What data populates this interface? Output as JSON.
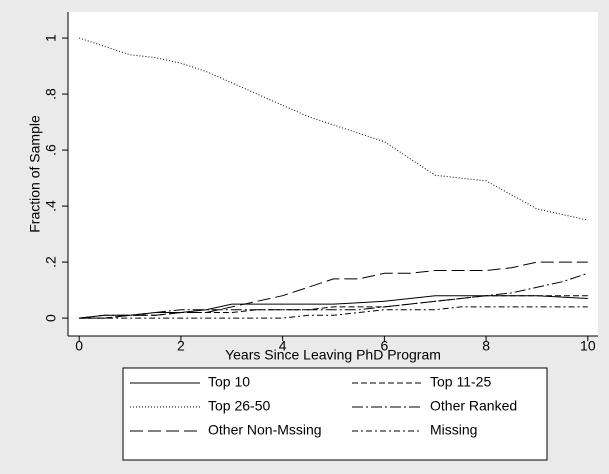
{
  "chart_data": {
    "type": "line",
    "xlabel": "Years Since Leaving PhD Program",
    "ylabel": "Fraction of Sample",
    "x": [
      0,
      0.5,
      1,
      1.5,
      2,
      2.5,
      3,
      3.5,
      4,
      4.5,
      5,
      5.5,
      6,
      6.5,
      7,
      7.5,
      8,
      8.5,
      9,
      9.5,
      10
    ],
    "series": [
      {
        "name": "Top 10",
        "color": "#000000",
        "dash": "solid",
        "values": [
          0,
          0.01,
          0.01,
          0.02,
          0.02,
          0.03,
          0.05,
          0.05,
          0.05,
          0.05,
          0.05,
          0.055,
          0.06,
          0.07,
          0.08,
          0.08,
          0.08,
          0.08,
          0.08,
          0.075,
          0.07
        ]
      },
      {
        "name": "Top 11-25",
        "color": "#000000",
        "dash": "dash",
        "values": [
          0,
          0,
          0.01,
          0.01,
          0.02,
          0.02,
          0.02,
          0.03,
          0.03,
          0.03,
          0.04,
          0.04,
          0.04,
          0.05,
          0.06,
          0.07,
          0.08,
          0.08,
          0.08,
          0.08,
          0.08
        ]
      },
      {
        "name": "Top 26-50",
        "color": "#000000",
        "dash": "dot",
        "values": [
          1,
          0.97,
          0.94,
          0.93,
          0.91,
          0.88,
          0.84,
          0.8,
          0.76,
          0.72,
          0.69,
          0.66,
          0.63,
          0.57,
          0.51,
          0.5,
          0.49,
          0.44,
          0.39,
          0.37,
          0.35
        ]
      },
      {
        "name": "Other Ranked",
        "color": "#000000",
        "dash": "longdash_dot",
        "values": [
          0,
          0.01,
          0.01,
          0.02,
          0.03,
          0.03,
          0.03,
          0.03,
          0.03,
          0.03,
          0.03,
          0.03,
          0.04,
          0.05,
          0.06,
          0.07,
          0.08,
          0.09,
          0.11,
          0.13,
          0.16
        ]
      },
      {
        "name": "Other Non-Mssing",
        "color": "#000000",
        "dash": "longdash",
        "values": [
          0,
          0,
          0.01,
          0.01,
          0.02,
          0.02,
          0.04,
          0.06,
          0.08,
          0.11,
          0.14,
          0.14,
          0.16,
          0.16,
          0.17,
          0.17,
          0.17,
          0.18,
          0.2,
          0.2,
          0.2
        ]
      },
      {
        "name": "Missing",
        "color": "#000000",
        "dash": "dash_dot",
        "values": [
          0,
          0,
          0,
          0,
          0,
          0,
          0,
          0,
          0,
          0.01,
          0.01,
          0.02,
          0.03,
          0.03,
          0.03,
          0.04,
          0.04,
          0.04,
          0.04,
          0.04,
          0.04
        ]
      }
    ],
    "xlim": [
      -0.22,
      10.2
    ],
    "xticks": [
      0,
      2,
      4,
      6,
      8,
      10
    ],
    "ylim": [
      -0.064,
      1.093
    ],
    "yticks": [
      0,
      {
        "value": 0.2,
        "label": ".2"
      },
      {
        "value": 0.4,
        "label": ".4"
      },
      {
        "value": 0.6,
        "label": ".6"
      },
      {
        "value": 0.8,
        "label": ".8"
      },
      1
    ],
    "grid": false,
    "legend": "bottom"
  }
}
